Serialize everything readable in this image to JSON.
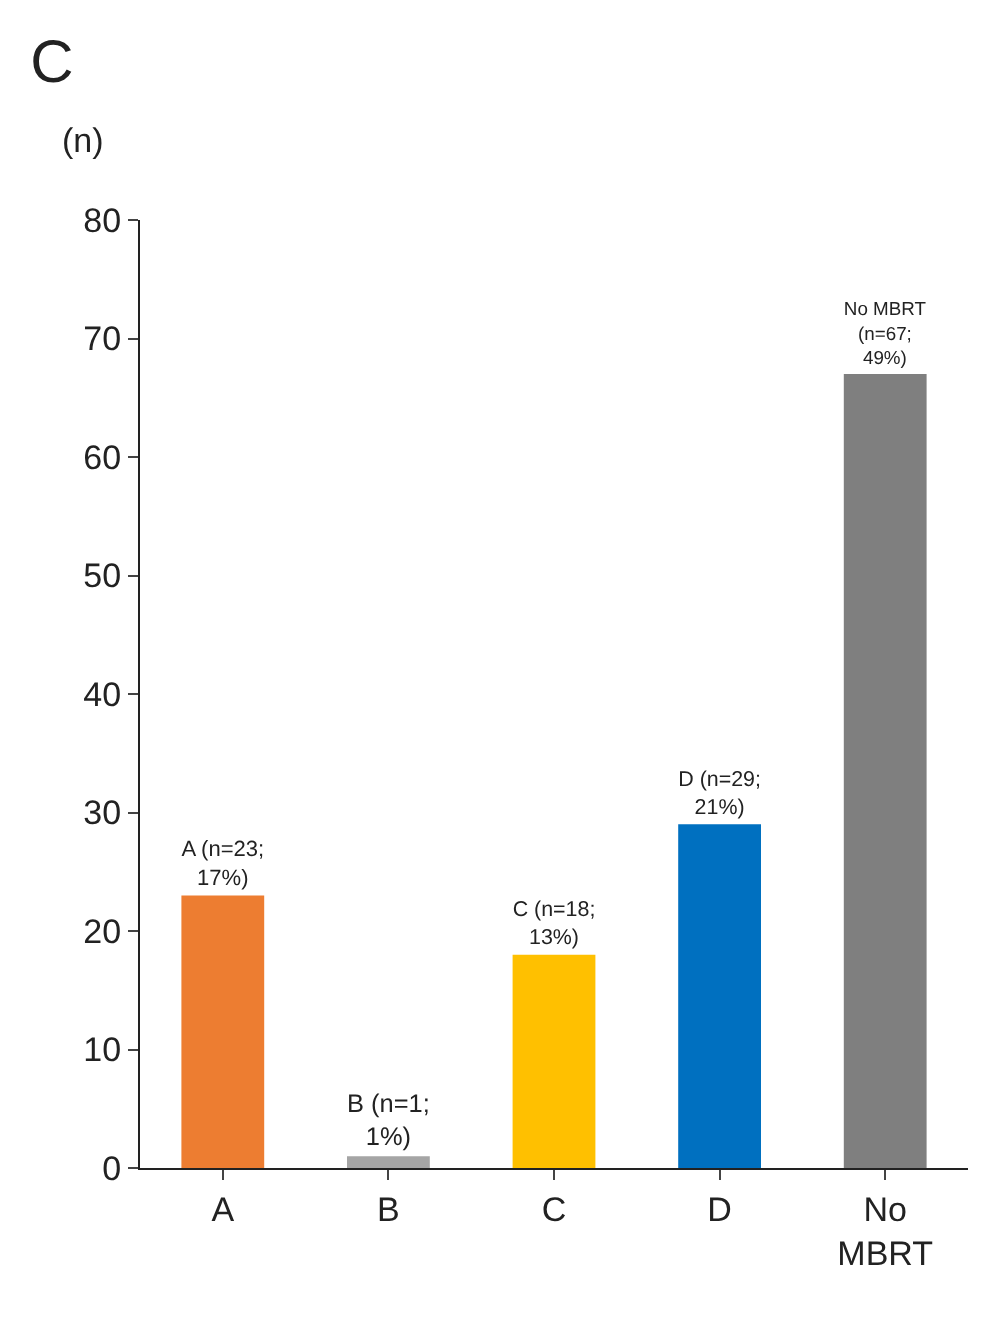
{
  "chart_data": {
    "type": "bar",
    "title": "C",
    "ylabel": "(n)",
    "categories": [
      "A",
      "B",
      "C",
      "D",
      "No\nMBRT"
    ],
    "values": [
      23,
      1,
      18,
      29,
      67
    ],
    "colors": [
      "#ed7d31",
      "#a5a5a5",
      "#ffc000",
      "#0070c0",
      "#7f7f7f"
    ],
    "value_labels": [
      "A (n=23;\n17%)",
      "B (n=1;\n1%)",
      "C (n=18;\n13%)",
      "D (n=29;\n21%)",
      "No MBRT\n(n=67;\n49%)"
    ],
    "ylim": [
      0,
      80
    ],
    "yticks": [
      0,
      10,
      20,
      30,
      40,
      50,
      60,
      70,
      80
    ]
  }
}
